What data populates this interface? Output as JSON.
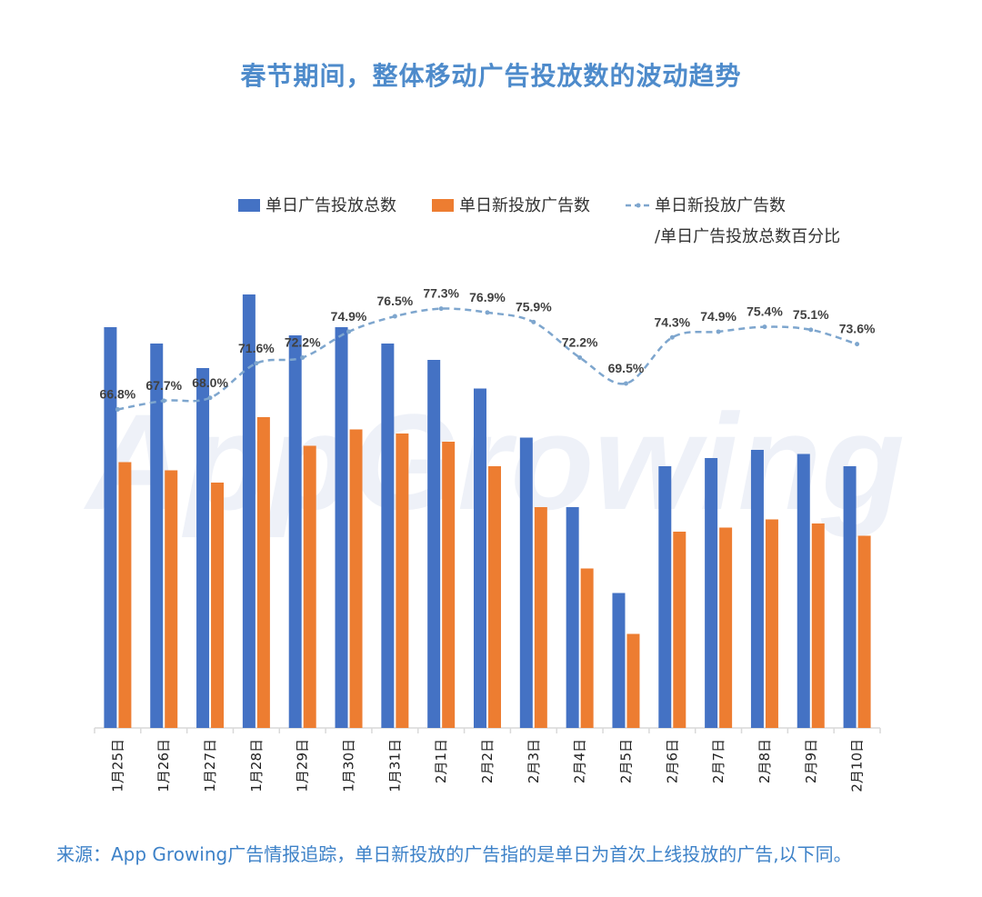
{
  "title": "春节期间，整体移动广告投放数的波动趋势",
  "source": "来源：App Growing广告情报追踪，单日新投放的广告指的是单日为首次上线投放的广告,以下同。",
  "watermark": "AppGrowing",
  "colors": {
    "total": "#4472C4",
    "new": "#ED7D31",
    "line": "#7EA6CE",
    "title": "#4E8BCB"
  },
  "chart_data": {
    "type": "bar",
    "title": "春节期间，整体移动广告投放数的波动趋势",
    "categories": [
      "1月25日",
      "1月26日",
      "1月27日",
      "1月28日",
      "1月29日",
      "1月30日",
      "1月31日",
      "2月1日",
      "2月2日",
      "2月3日",
      "2月4日",
      "2月5日",
      "2月6日",
      "2月7日",
      "2月8日",
      "2月9日",
      "2月10日"
    ],
    "series": [
      {
        "name": "单日广告投放总数",
        "values": [
          98,
          94,
          88,
          106,
          96,
          98,
          94,
          90,
          83,
          71,
          54,
          33,
          64,
          66,
          68,
          67,
          64
        ]
      },
      {
        "name": "单日新投放广告数",
        "values": [
          65,
          63,
          60,
          76,
          69,
          73,
          72,
          70,
          64,
          54,
          39,
          23,
          48,
          49,
          51,
          50,
          47
        ]
      },
      {
        "name_line1": "单日新投放广告数",
        "name_line2": "/单日广告投放总数百分比",
        "type": "line",
        "values": [
          66.8,
          67.7,
          68.0,
          71.6,
          72.2,
          74.9,
          76.5,
          77.3,
          76.9,
          75.9,
          72.2,
          69.5,
          74.3,
          74.9,
          75.4,
          75.1,
          73.6
        ],
        "labels": [
          "66.8%",
          "67.7%",
          "68.0%",
          "71.6%",
          "72.2%",
          "74.9%",
          "76.5%",
          "77.3%",
          "76.9%",
          "75.9%",
          "72.2%",
          "69.5%",
          "74.3%",
          "74.9%",
          "75.4%",
          "75.1%",
          "73.6%"
        ]
      }
    ],
    "ylim": [
      0,
      110
    ],
    "line_ylim": [
      64,
      82
    ],
    "xlabel": "",
    "ylabel": ""
  }
}
